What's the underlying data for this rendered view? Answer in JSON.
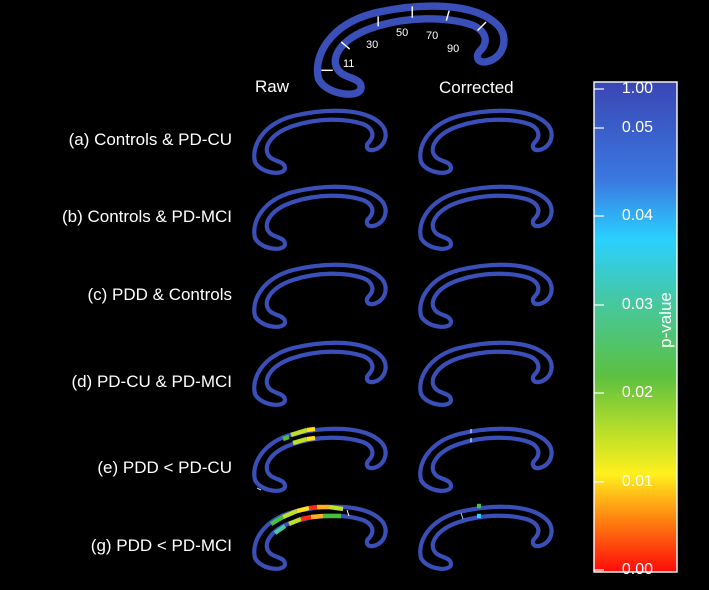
{
  "column_headers": {
    "raw": "Raw",
    "corrected": "Corrected"
  },
  "segment_numbers": [
    "11",
    "30",
    "50",
    "70",
    "90"
  ],
  "rows": [
    {
      "label": "(a) Controls & PD-CU"
    },
    {
      "label": "(b) Controls & PD-MCI"
    },
    {
      "label": "(c) PDD & Controls"
    },
    {
      "label": "(d) PD-CU & PD-MCI"
    },
    {
      "label": "(e) PDD < PD-CU"
    },
    {
      "label": "(g) PDD < PD-MCI"
    }
  ],
  "colorbar": {
    "label": "p-value",
    "ticks": [
      "1.00",
      "0.05",
      "0.04",
      "0.03",
      "0.02",
      "0.01",
      "0.00"
    ]
  },
  "colors": {
    "background": "#000000",
    "outline": "#3a4fb8",
    "significant_high": "#ff2a1a",
    "significant_mid": "#ffe020",
    "significant_low": "#46c040",
    "marker": "#9fd6ff"
  }
}
